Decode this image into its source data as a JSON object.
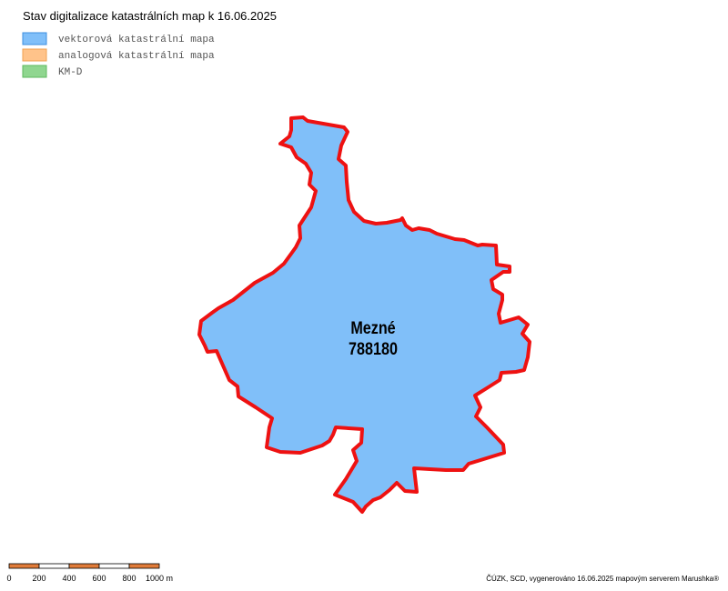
{
  "title": "Stav digitalizace katastrálních map k 16.06.2025",
  "legend": [
    {
      "label": "vektorová katastrální mapa",
      "color": "#80bff9",
      "border": "#3d8fe0"
    },
    {
      "label": "analogová katastrální mapa",
      "color": "#ffc38a",
      "border": "#f0a050"
    },
    {
      "label": "KM-D",
      "color": "#8fd68f",
      "border": "#5cb85c"
    }
  ],
  "area": {
    "name": "Mezné",
    "code": "788180"
  },
  "scale_labels": [
    "0",
    "200",
    "400",
    "600",
    "800",
    "1000 m"
  ],
  "footer": "ČÚZK, SCD, vygenerováno 16.06.2025 mapovým serverem Marushka®"
}
